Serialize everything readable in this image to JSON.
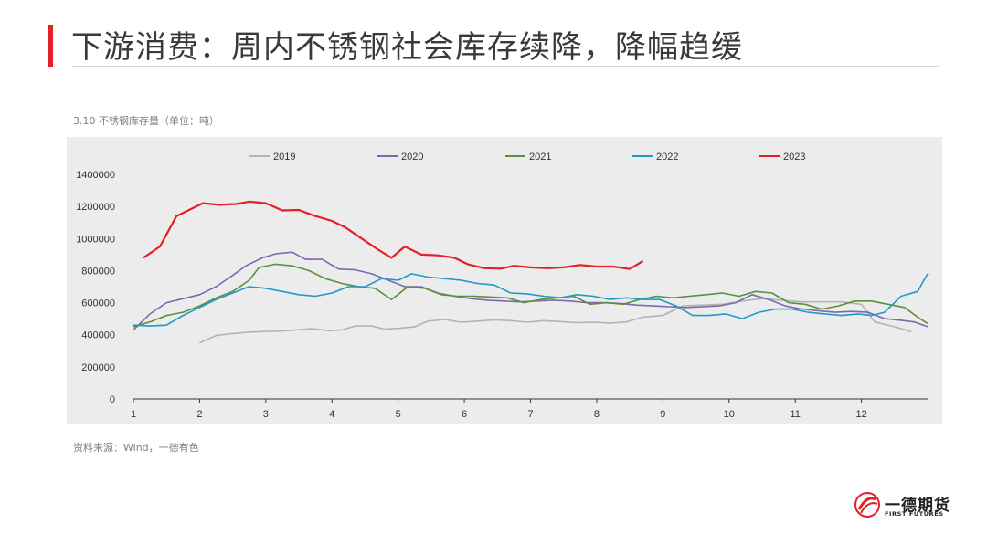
{
  "page": {
    "title": "下游消费：周内不锈钢社会库存续降，降幅趋缓",
    "caption": "3.10 不锈钢库存量（单位：吨）",
    "source": "资料来源：Wind，一德有色",
    "logo": {
      "name": "一德期货",
      "sub": "FIRST FUTURES"
    }
  },
  "colors": {
    "accent": "#e41f26"
  },
  "chart_data": {
    "type": "line",
    "title": "",
    "xlabel": "",
    "ylabel": "",
    "xlim": [
      1,
      13
    ],
    "ylim": [
      0,
      1400000
    ],
    "x_ticks": [
      1,
      2,
      3,
      4,
      5,
      6,
      7,
      8,
      9,
      10,
      11,
      12
    ],
    "y_ticks": [
      0,
      200000,
      400000,
      600000,
      800000,
      1000000,
      1200000,
      1400000
    ],
    "legend_position": "top",
    "grid": false,
    "series": [
      {
        "name": "2019",
        "color": "#b3b3b3",
        "x": [
          2.0,
          2.25,
          2.45,
          2.7,
          2.95,
          3.2,
          3.45,
          3.7,
          3.95,
          4.15,
          4.35,
          4.6,
          4.8,
          5.0,
          5.25,
          5.45,
          5.7,
          5.95,
          6.2,
          6.45,
          6.7,
          6.95,
          7.2,
          7.45,
          7.7,
          7.95,
          8.2,
          8.45,
          8.7,
          9.0,
          9.3,
          9.6,
          9.9,
          10.2,
          10.5,
          10.8,
          11.1,
          11.4,
          11.7,
          12.0,
          12.2,
          12.5,
          12.75
        ],
        "y": [
          350000,
          395000,
          405000,
          415000,
          420000,
          422000,
          430000,
          438000,
          425000,
          430000,
          455000,
          455000,
          435000,
          440000,
          450000,
          485000,
          495000,
          478000,
          485000,
          492000,
          488000,
          478000,
          488000,
          482000,
          475000,
          478000,
          472000,
          480000,
          510000,
          520000,
          580000,
          585000,
          590000,
          610000,
          625000,
          615000,
          605000,
          605000,
          605000,
          590000,
          480000,
          450000,
          420000
        ]
      },
      {
        "name": "2020",
        "color": "#7b68b0",
        "x": [
          1.0,
          1.25,
          1.5,
          1.75,
          2.0,
          2.25,
          2.5,
          2.7,
          2.95,
          3.15,
          3.4,
          3.6,
          3.85,
          4.1,
          4.35,
          4.6,
          4.85,
          5.1,
          5.35,
          5.6,
          5.85,
          6.1,
          6.35,
          6.6,
          6.85,
          7.1,
          7.35,
          7.6,
          7.85,
          8.1,
          8.35,
          8.6,
          8.85,
          9.1,
          9.35,
          9.6,
          9.85,
          10.1,
          10.35,
          10.6,
          10.85,
          11.1,
          11.35,
          11.6,
          11.85,
          12.1,
          12.35,
          12.6,
          12.8,
          13.0
        ],
        "y": [
          430000,
          530000,
          600000,
          625000,
          650000,
          700000,
          770000,
          830000,
          880000,
          905000,
          915000,
          870000,
          870000,
          810000,
          805000,
          780000,
          740000,
          700000,
          700000,
          660000,
          640000,
          625000,
          615000,
          610000,
          605000,
          610000,
          615000,
          610000,
          600000,
          600000,
          595000,
          585000,
          580000,
          575000,
          570000,
          575000,
          580000,
          600000,
          650000,
          620000,
          580000,
          560000,
          550000,
          540000,
          545000,
          540000,
          500000,
          490000,
          480000,
          450000
        ]
      },
      {
        "name": "2021",
        "color": "#5c8f3b",
        "x": [
          1.0,
          1.25,
          1.5,
          1.75,
          2.0,
          2.25,
          2.5,
          2.75,
          2.9,
          3.15,
          3.4,
          3.65,
          3.9,
          4.15,
          4.4,
          4.65,
          4.9,
          5.15,
          5.4,
          5.65,
          5.9,
          6.15,
          6.4,
          6.65,
          6.9,
          7.15,
          7.4,
          7.65,
          7.9,
          8.15,
          8.4,
          8.65,
          8.9,
          9.15,
          9.4,
          9.65,
          9.9,
          10.15,
          10.4,
          10.65,
          10.9,
          11.15,
          11.4,
          11.65,
          11.9,
          12.15,
          12.4,
          12.65,
          12.85,
          13.0
        ],
        "y": [
          450000,
          480000,
          520000,
          540000,
          580000,
          630000,
          670000,
          740000,
          820000,
          840000,
          830000,
          800000,
          750000,
          720000,
          700000,
          690000,
          620000,
          700000,
          690000,
          650000,
          640000,
          640000,
          635000,
          630000,
          600000,
          620000,
          630000,
          640000,
          590000,
          600000,
          590000,
          620000,
          640000,
          630000,
          640000,
          650000,
          660000,
          640000,
          670000,
          660000,
          600000,
          590000,
          560000,
          580000,
          610000,
          610000,
          590000,
          570000,
          510000,
          470000
        ]
      },
      {
        "name": "2022",
        "color": "#1f9ac8",
        "x": [
          1.0,
          1.25,
          1.5,
          1.75,
          2.0,
          2.25,
          2.5,
          2.75,
          3.0,
          3.25,
          3.5,
          3.75,
          4.0,
          4.25,
          4.5,
          4.75,
          5.0,
          5.2,
          5.45,
          5.7,
          5.95,
          6.2,
          6.45,
          6.7,
          6.95,
          7.2,
          7.45,
          7.7,
          7.95,
          8.2,
          8.45,
          8.7,
          8.95,
          9.2,
          9.45,
          9.7,
          9.95,
          10.2,
          10.45,
          10.7,
          10.95,
          11.2,
          11.45,
          11.7,
          11.95,
          12.15,
          12.35,
          12.6,
          12.85,
          13.0
        ],
        "y": [
          460000,
          455000,
          460000,
          520000,
          570000,
          620000,
          660000,
          700000,
          690000,
          670000,
          650000,
          640000,
          660000,
          700000,
          700000,
          750000,
          740000,
          780000,
          760000,
          750000,
          740000,
          720000,
          710000,
          660000,
          655000,
          640000,
          630000,
          650000,
          640000,
          620000,
          630000,
          620000,
          620000,
          580000,
          520000,
          520000,
          530000,
          500000,
          540000,
          560000,
          560000,
          540000,
          530000,
          520000,
          530000,
          520000,
          540000,
          640000,
          670000,
          780000
        ]
      },
      {
        "name": "2023",
        "color": "#e41f26",
        "x": [
          1.15,
          1.4,
          1.65,
          1.9,
          2.05,
          2.3,
          2.55,
          2.75,
          3.0,
          3.25,
          3.5,
          3.75,
          4.0,
          4.2,
          4.45,
          4.7,
          4.9,
          5.1,
          5.35,
          5.6,
          5.85,
          6.05,
          6.3,
          6.55,
          6.75,
          7.0,
          7.25,
          7.5,
          7.75,
          8.0,
          8.25,
          8.5,
          8.7
        ],
        "y": [
          880000,
          950000,
          1140000,
          1190000,
          1220000,
          1210000,
          1215000,
          1230000,
          1220000,
          1175000,
          1178000,
          1140000,
          1110000,
          1070000,
          1000000,
          930000,
          880000,
          950000,
          900000,
          895000,
          880000,
          840000,
          815000,
          812000,
          830000,
          820000,
          815000,
          820000,
          835000,
          825000,
          825000,
          810000,
          860000
        ]
      }
    ]
  }
}
